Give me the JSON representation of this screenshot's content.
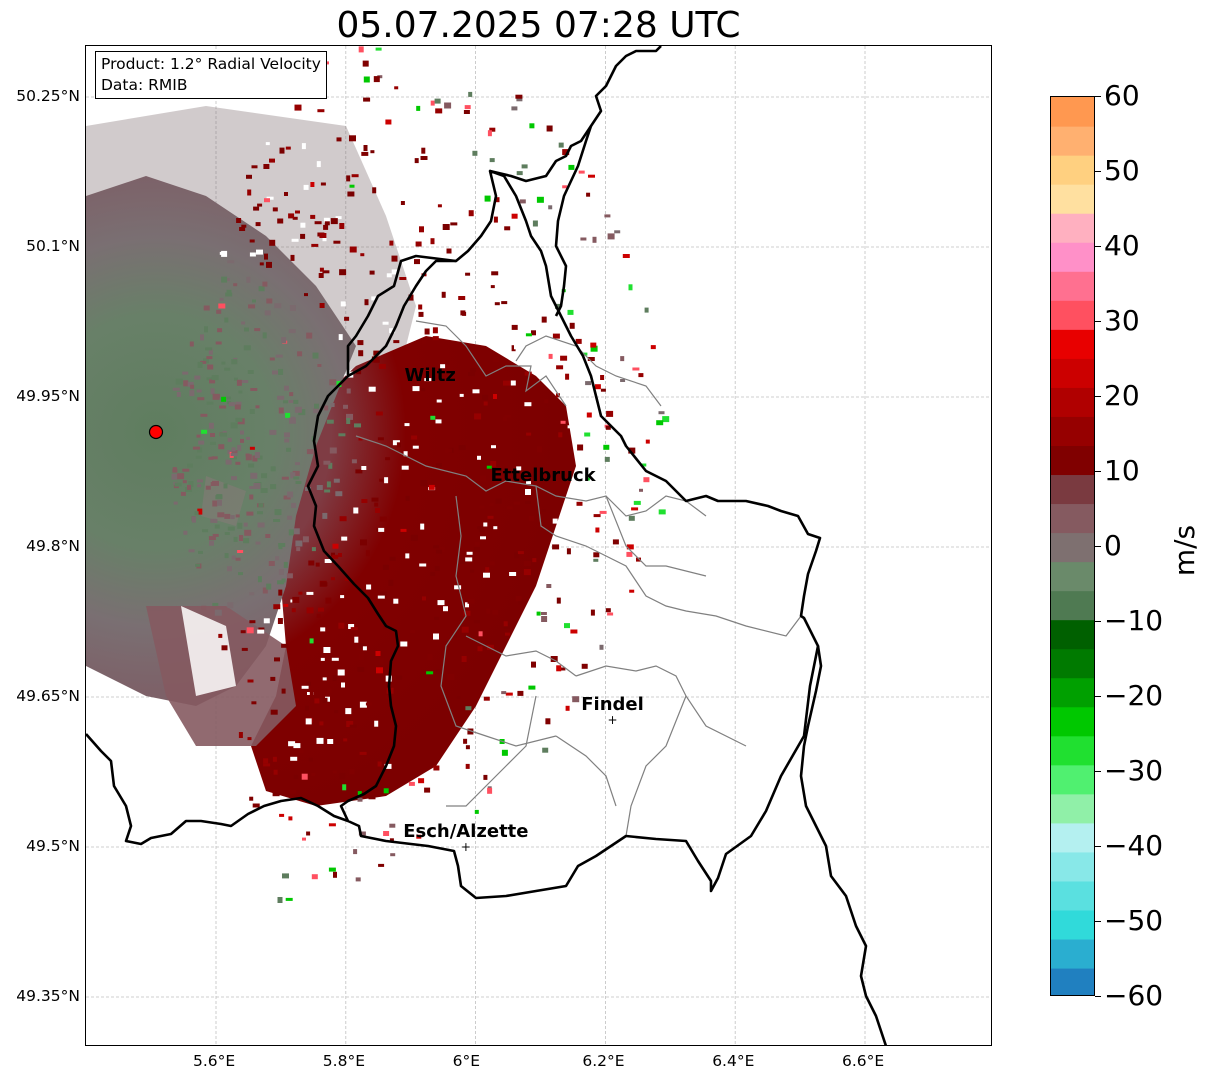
{
  "title": "05.07.2025 07:28 UTC",
  "info_box": {
    "product": "Product: 1.2° Radial Velocity",
    "data_source": "Data: RMIB"
  },
  "map": {
    "lon_range": [
      5.4,
      6.8
    ],
    "lat_range": [
      49.3,
      50.3
    ],
    "grid": true,
    "radar_site": {
      "lon": 5.505,
      "lat": 49.915,
      "marker": "red-circle"
    },
    "lon_ticks": [
      "5.6°E",
      "5.8°E",
      "6°E",
      "6.2°E",
      "6.4°E",
      "6.6°E"
    ],
    "lat_ticks": [
      "50.25°N",
      "50.1°N",
      "49.95°N",
      "49.8°N",
      "49.65°N",
      "49.5°N",
      "49.35°N"
    ],
    "cities": [
      {
        "name": "Wiltz",
        "lon": 5.93,
        "lat": 49.966,
        "marker": false
      },
      {
        "name": "Ettelbruck",
        "lon": 6.104,
        "lat": 49.866,
        "marker": false
      },
      {
        "name": "Findel",
        "lon": 6.211,
        "lat": 49.627,
        "marker": true
      },
      {
        "name": "Esch/Alzette",
        "lon": 5.985,
        "lat": 49.5,
        "marker": true
      }
    ]
  },
  "colorbar": {
    "label": "m/s",
    "range": [
      -60,
      60
    ],
    "ticks": [
      "60",
      "50",
      "40",
      "30",
      "20",
      "10",
      "0",
      "−10",
      "−20",
      "−30",
      "−40",
      "−50",
      "−60"
    ],
    "colors": [
      "#2080c0",
      "#2aaed0",
      "#30dada",
      "#5ae0e0",
      "#88e8e8",
      "#b4f0f0",
      "#90f0a8",
      "#50f070",
      "#20e030",
      "#00c800",
      "#00a000",
      "#007a00",
      "#006000",
      "#4f7a52",
      "#6a8a6a",
      "#7e7070",
      "#855a60",
      "#7a3a40",
      "#800000",
      "#960000",
      "#b00000",
      "#cc0000",
      "#e80000",
      "#ff5060",
      "#ff7090",
      "#ff90c8",
      "#ffb0c0",
      "#ffe0a0",
      "#ffd080",
      "#ffb070",
      "#ff9850"
    ]
  },
  "colors": {
    "country_border": "#000000",
    "canton_border": "#808080",
    "grid": "#c0c0c0",
    "velocity_inbound": "#5e7d5e",
    "velocity_neutral": "#7b6a6e",
    "velocity_outbound": "#800000"
  }
}
